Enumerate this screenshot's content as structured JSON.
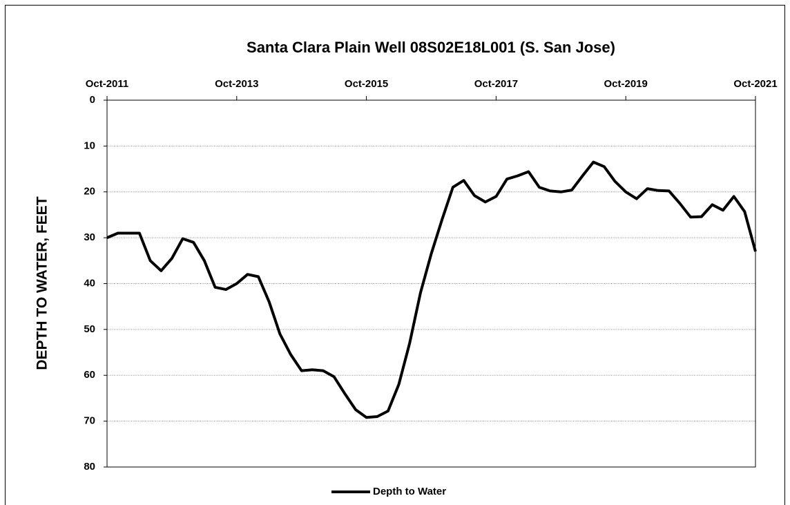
{
  "chart_data": {
    "type": "line",
    "title": "Santa Clara Plain Well 08S02E18L001 (S. San Jose)",
    "y_label": "DEPTH TO WATER, FEET",
    "x": [
      "2011-10",
      "2011-12",
      "2012-02",
      "2012-04",
      "2012-06",
      "2012-08",
      "2012-10",
      "2012-12",
      "2013-02",
      "2013-04",
      "2013-06",
      "2013-08",
      "2013-10",
      "2013-12",
      "2014-02",
      "2014-04",
      "2014-06",
      "2014-08",
      "2014-10",
      "2014-12",
      "2015-02",
      "2015-04",
      "2015-06",
      "2015-08",
      "2015-10",
      "2015-12",
      "2016-02",
      "2016-04",
      "2016-06",
      "2016-08",
      "2016-10",
      "2016-12",
      "2017-02",
      "2017-04",
      "2017-06",
      "2017-08",
      "2017-10",
      "2017-12",
      "2018-02",
      "2018-04",
      "2018-06",
      "2018-08",
      "2018-10",
      "2018-12",
      "2019-02",
      "2019-04",
      "2019-06",
      "2019-08",
      "2019-10",
      "2019-12",
      "2020-02",
      "2020-04",
      "2020-06",
      "2020-08",
      "2020-10",
      "2020-12",
      "2021-02",
      "2021-04",
      "2021-06",
      "2021-08",
      "2021-10"
    ],
    "series": [
      {
        "name": "Depth to Water",
        "color": "#000000",
        "values": [
          30,
          29,
          29,
          29,
          35,
          37.2,
          34.5,
          30.2,
          31,
          35,
          40.8,
          41.3,
          40,
          38,
          38.5,
          44,
          51,
          55.5,
          59,
          58.8,
          59,
          60.3,
          64,
          67.5,
          69.2,
          69,
          67.8,
          62,
          53,
          42,
          33.5,
          26,
          19,
          17.5,
          20.8,
          22.2,
          21,
          17.2,
          16.5,
          15.6,
          19,
          19.8,
          20,
          19.6,
          16.5,
          13.5,
          14.5,
          17.7,
          20,
          21.5,
          19.3,
          19.7,
          19.8,
          22.5,
          25.5,
          25.4,
          22.8,
          24,
          21,
          24.3,
          33
        ]
      }
    ],
    "xlim": [
      "2011-10",
      "2021-10"
    ],
    "xticks": [
      {
        "value": "2011-10",
        "label": "Oct-2011"
      },
      {
        "value": "2013-10",
        "label": "Oct-2013"
      },
      {
        "value": "2015-10",
        "label": "Oct-2015"
      },
      {
        "value": "2017-10",
        "label": "Oct-2017"
      },
      {
        "value": "2019-10",
        "label": "Oct-2019"
      },
      {
        "value": "2021-10",
        "label": "Oct-2021"
      }
    ],
    "ylim": [
      0,
      80
    ],
    "yticks": [
      0,
      10,
      20,
      30,
      40,
      50,
      60,
      70,
      80
    ],
    "y_inverted": true,
    "x_axis_position": "top",
    "grid": true,
    "legend": "bottom"
  }
}
